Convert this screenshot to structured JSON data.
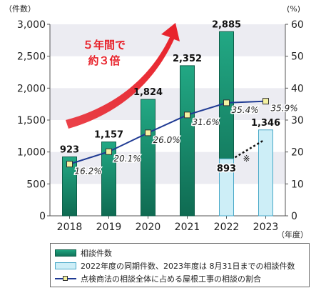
{
  "chart_data": {
    "type": "bar+line",
    "categories": [
      "2018",
      "2019",
      "2020",
      "2021",
      "2022",
      "2023"
    ],
    "left_axis": {
      "unit": "（件数）",
      "ticks": [
        "0",
        "500",
        "1,000",
        "1,500",
        "2,000",
        "2,500",
        "3,000"
      ],
      "ylim": [
        0,
        3000
      ]
    },
    "right_axis": {
      "unit": "(%)",
      "ticks": [
        "0",
        "10",
        "20",
        "30",
        "40",
        "50",
        "60"
      ],
      "ylim": [
        0,
        60
      ]
    },
    "x_unit": "（年度）",
    "bars": {
      "name": "相談件数",
      "values": [
        923,
        1157,
        1824,
        2352,
        2885,
        1346
      ],
      "labels": [
        "923",
        "1,157",
        "1,824",
        "2,352",
        "2,885",
        "1,346"
      ]
    },
    "bar_2022_same_period": {
      "value": 893,
      "label": "893",
      "mark": "※"
    },
    "line": {
      "name": "点検商法の相談全体に占める屋根工事の相談の割合",
      "values": [
        16.2,
        20.1,
        26.0,
        31.6,
        35.4,
        35.9
      ],
      "labels": [
        "16.2%",
        "20.1%",
        "26.0%",
        "31.6%",
        "35.4%",
        "35.9%"
      ]
    },
    "annotation": {
      "line1": "５年間で",
      "line2": "約３倍"
    },
    "grid": "alternating horizontal bands"
  },
  "legend": {
    "items": [
      {
        "label": "相談件数"
      },
      {
        "label": "2022年度の同期件数、2023年度は 8月31日までの相談件数"
      },
      {
        "label": "点検商法の相談全体に占める屋根工事の相談の割合"
      }
    ]
  },
  "colors": {
    "bar_top": "#22a884",
    "bar_bottom": "#0f6b52",
    "bar_light": "#cdeef7",
    "line": "#1f3a93",
    "marker": "#f4f2a2",
    "arrow": "#e8212a",
    "band": "#ececf2"
  }
}
